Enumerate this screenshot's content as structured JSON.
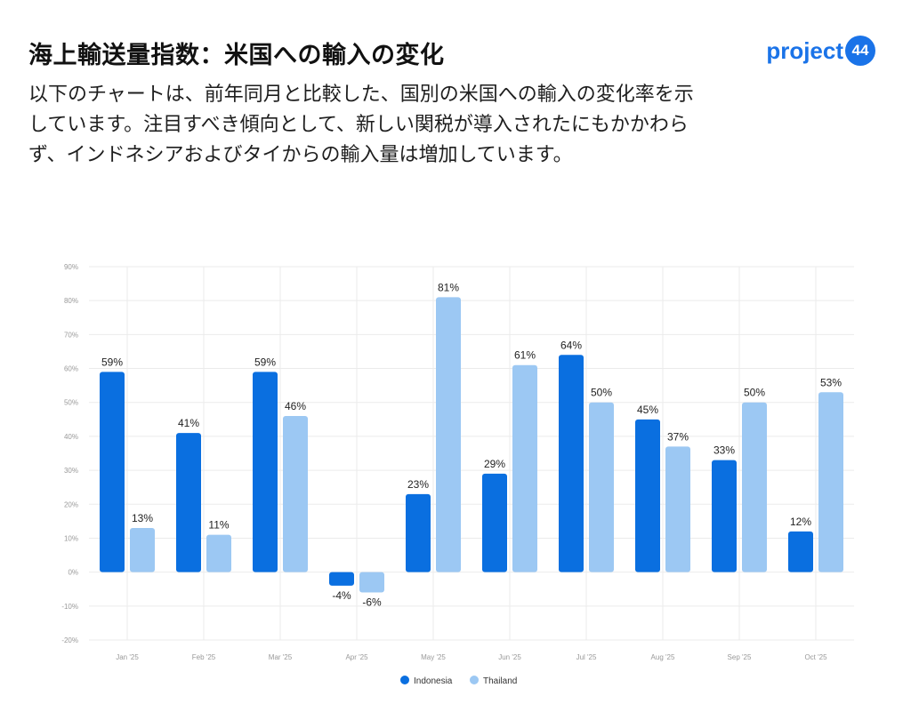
{
  "header": {
    "title": "海上輸送量指数：米国への輸入の変化",
    "description": "以下のチャートは、前年同月と比較した、国別の米国への輸入の変化率を示しています。注目すべき傾向として、新しい関税が導入されたにもかかわらず、インドネシアおよびタイからの輸入量は増加しています。"
  },
  "logo": {
    "text": "project",
    "badge": "44"
  },
  "colors": {
    "indonesia": "#0a6fe0",
    "thailand": "#9cc8f3",
    "grid": "#ebebeb",
    "axis": "#999999",
    "logo": "#1a73e8"
  },
  "chart_data": {
    "type": "bar",
    "title": "",
    "xlabel": "",
    "ylabel": "",
    "categories": [
      "Jan '25",
      "Feb '25",
      "Mar '25",
      "Apr '25",
      "May '25",
      "Jun '25",
      "Jul '25",
      "Aug '25",
      "Sep '25",
      "Oct '25"
    ],
    "series": [
      {
        "name": "Indonesia",
        "values": [
          59,
          41,
          59,
          -4,
          23,
          29,
          64,
          45,
          33,
          12
        ]
      },
      {
        "name": "Thailand",
        "values": [
          13,
          11,
          46,
          -6,
          81,
          61,
          50,
          37,
          50,
          53
        ]
      }
    ],
    "ylim": [
      -20,
      90
    ],
    "yticks": [
      90,
      80,
      70,
      60,
      50,
      40,
      30,
      20,
      10,
      0,
      -10,
      -20
    ],
    "ytick_labels": [
      "90%",
      "80%",
      "70%",
      "60%",
      "50%",
      "40%",
      "30%",
      "20%",
      "10%",
      "0%",
      "-10%",
      "-20%"
    ],
    "data_labels": {
      "Indonesia": [
        "59%",
        "41%",
        "59%",
        "-4%",
        "23%",
        "29%",
        "64%",
        "45%",
        "33%",
        "12%"
      ],
      "Thailand": [
        "13%",
        "11%",
        "46%",
        "-6%",
        "81%",
        "61%",
        "50%",
        "37%",
        "50%",
        "53%"
      ]
    },
    "legend": [
      "Indonesia",
      "Thailand"
    ],
    "legend_position": "bottom-center",
    "grid": true
  }
}
